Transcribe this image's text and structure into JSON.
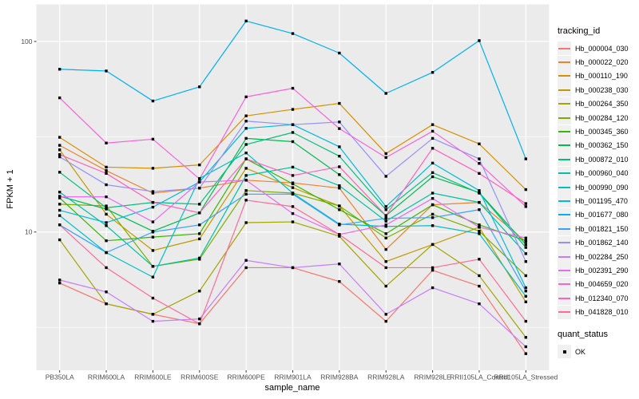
{
  "figure": {
    "y_axis": {
      "label": "FPKM + 1",
      "ticks": [
        {
          "label": "100",
          "value": 100
        },
        {
          "label": "10",
          "value": 10
        }
      ]
    },
    "x_axis": {
      "label": "sample_name"
    },
    "quant_legend": {
      "title": "quant_status",
      "items": [
        {
          "label": "OK",
          "marker": "black-square"
        }
      ]
    },
    "colors": {
      "panel_background": "#EBEBEB",
      "gridline": "#FFFFFF",
      "tick_text": "#4D4D4D",
      "point": "#000000",
      "legend_key_background": "#F0F0F0"
    }
  },
  "chart_data": {
    "type": "line",
    "title": "",
    "xlabel": "sample_name",
    "ylabel": "FPKM + 1",
    "legend_title": "tracking_id",
    "legend_position": "right",
    "y_scale": "log10",
    "ylim": [
      1.9,
      156
    ],
    "y_major_gridlines": [
      10,
      100
    ],
    "y_minor_gridlines": [
      3.162,
      31.62
    ],
    "grid": true,
    "point_marker": {
      "shape": "square",
      "color": "#000000",
      "meaning": "quant_status OK"
    },
    "categories": [
      "PB350LA",
      "RRIM600LA",
      "RRIM600LE",
      "RRIM600SE",
      "RRIM600PE",
      "RRIM901LA",
      "RRIM928BA",
      "RRIM928LA",
      "RRIM928LE",
      "RRII105LA_Control",
      "RRII105LA_Stressed"
    ],
    "series": [
      {
        "name": "Hb_000004_030",
        "color": "#F8766D",
        "values": [
          5.4,
          4.2,
          3.7,
          3.3,
          6.5,
          6.5,
          5.5,
          3.4,
          6.3,
          5.2,
          2.3
        ]
      },
      {
        "name": "Hb_000022_020",
        "color": "#EA8331",
        "values": [
          28.5,
          21.0,
          16.0,
          17.0,
          18.7,
          18.1,
          17.0,
          8.1,
          13.9,
          14.3,
          8.9
        ]
      },
      {
        "name": "Hb_000110_190",
        "color": "#D89000",
        "values": [
          31.4,
          21.9,
          21.6,
          22.5,
          40.7,
          44.0,
          47.3,
          25.8,
          36.6,
          29.0,
          16.7
        ]
      },
      {
        "name": "Hb_000238_030",
        "color": "#C09B00",
        "values": [
          27.0,
          12.4,
          8.0,
          9.2,
          21.6,
          17.1,
          13.7,
          7.0,
          8.6,
          10.6,
          4.3
        ]
      },
      {
        "name": "Hb_000264_350",
        "color": "#A3A500",
        "values": [
          9.1,
          4.2,
          3.7,
          4.9,
          11.2,
          11.3,
          9.5,
          5.2,
          8.6,
          5.9,
          2.8
        ]
      },
      {
        "name": "Hb_000284_120",
        "color": "#7CAE00",
        "values": [
          14.0,
          13.7,
          6.6,
          7.2,
          16.5,
          16.0,
          13.7,
          9.3,
          12.4,
          10.1,
          5.9
        ]
      },
      {
        "name": "Hb_000345_360",
        "color": "#39B600",
        "values": [
          15.1,
          9.0,
          9.4,
          9.8,
          24.2,
          17.9,
          13.1,
          9.8,
          13.9,
          10.9,
          9.0
        ]
      },
      {
        "name": "Hb_000362_150",
        "color": "#00BB4E",
        "values": [
          15.4,
          13.2,
          10.1,
          12.6,
          31.0,
          29.8,
          20.0,
          12.2,
          19.5,
          16.1,
          8.6
        ]
      },
      {
        "name": "Hb_000872_010",
        "color": "#00BF7D",
        "values": [
          20.6,
          13.4,
          14.3,
          14.0,
          28.8,
          33.3,
          25.0,
          13.1,
          20.5,
          16.0,
          8.3
        ]
      },
      {
        "name": "Hb_000960_040",
        "color": "#00C1A3",
        "values": [
          16.2,
          10.8,
          6.6,
          7.3,
          19.8,
          21.9,
          17.5,
          11.4,
          16.0,
          14.3,
          7.7
        ]
      },
      {
        "name": "Hb_000990_090",
        "color": "#00BFC4",
        "values": [
          12.2,
          7.8,
          5.8,
          19.1,
          26.0,
          16.0,
          11.0,
          10.7,
          10.8,
          9.8,
          4.6
        ]
      },
      {
        "name": "Hb_001195_470",
        "color": "#00BAE0",
        "values": [
          13.0,
          11.2,
          13.5,
          18.3,
          35.0,
          36.6,
          28.0,
          13.6,
          23.0,
          16.5,
          5.1
        ]
      },
      {
        "name": "Hb_001677_080",
        "color": "#00B0F6",
        "values": [
          71.5,
          70.0,
          48.7,
          57.8,
          128.0,
          110.0,
          86.9,
          53.4,
          68.8,
          101.0,
          24.2
        ]
      },
      {
        "name": "Hb_001821_150",
        "color": "#35A2FF",
        "values": [
          10.9,
          7.8,
          10.0,
          10.9,
          15.8,
          15.8,
          10.9,
          11.8,
          11.9,
          13.1,
          4.9
        ]
      },
      {
        "name": "Hb_001862_140",
        "color": "#9590FF",
        "values": [
          24.8,
          17.7,
          16.3,
          17.0,
          38.2,
          36.6,
          37.8,
          19.6,
          31.0,
          24.2,
          7.0
        ]
      },
      {
        "name": "Hb_002284_250",
        "color": "#C77CFF",
        "values": [
          5.6,
          4.85,
          3.4,
          3.5,
          7.1,
          6.5,
          6.8,
          3.7,
          5.1,
          4.2,
          2.5
        ]
      },
      {
        "name": "Hb_002391_290",
        "color": "#E76BF3",
        "values": [
          15.3,
          15.3,
          11.3,
          18.3,
          18.7,
          12.5,
          9.7,
          10.9,
          15.0,
          10.6,
          9.3
        ]
      },
      {
        "name": "Hb_004659_020",
        "color": "#FA62DB",
        "values": [
          50.6,
          29.3,
          30.7,
          19.0,
          51.2,
          56.8,
          34.9,
          24.6,
          33.8,
          22.9,
          13.6
        ]
      },
      {
        "name": "Hb_012340_070",
        "color": "#FF62BC",
        "values": [
          25.5,
          20.3,
          14.3,
          12.6,
          24.2,
          19.8,
          22.0,
          12.2,
          27.5,
          20.3,
          14.1
        ]
      },
      {
        "name": "Hb_041828_010",
        "color": "#FF6A98",
        "values": [
          10.9,
          6.5,
          4.5,
          3.3,
          14.7,
          13.6,
          9.7,
          6.5,
          6.5,
          7.2,
          3.4
        ]
      }
    ]
  }
}
